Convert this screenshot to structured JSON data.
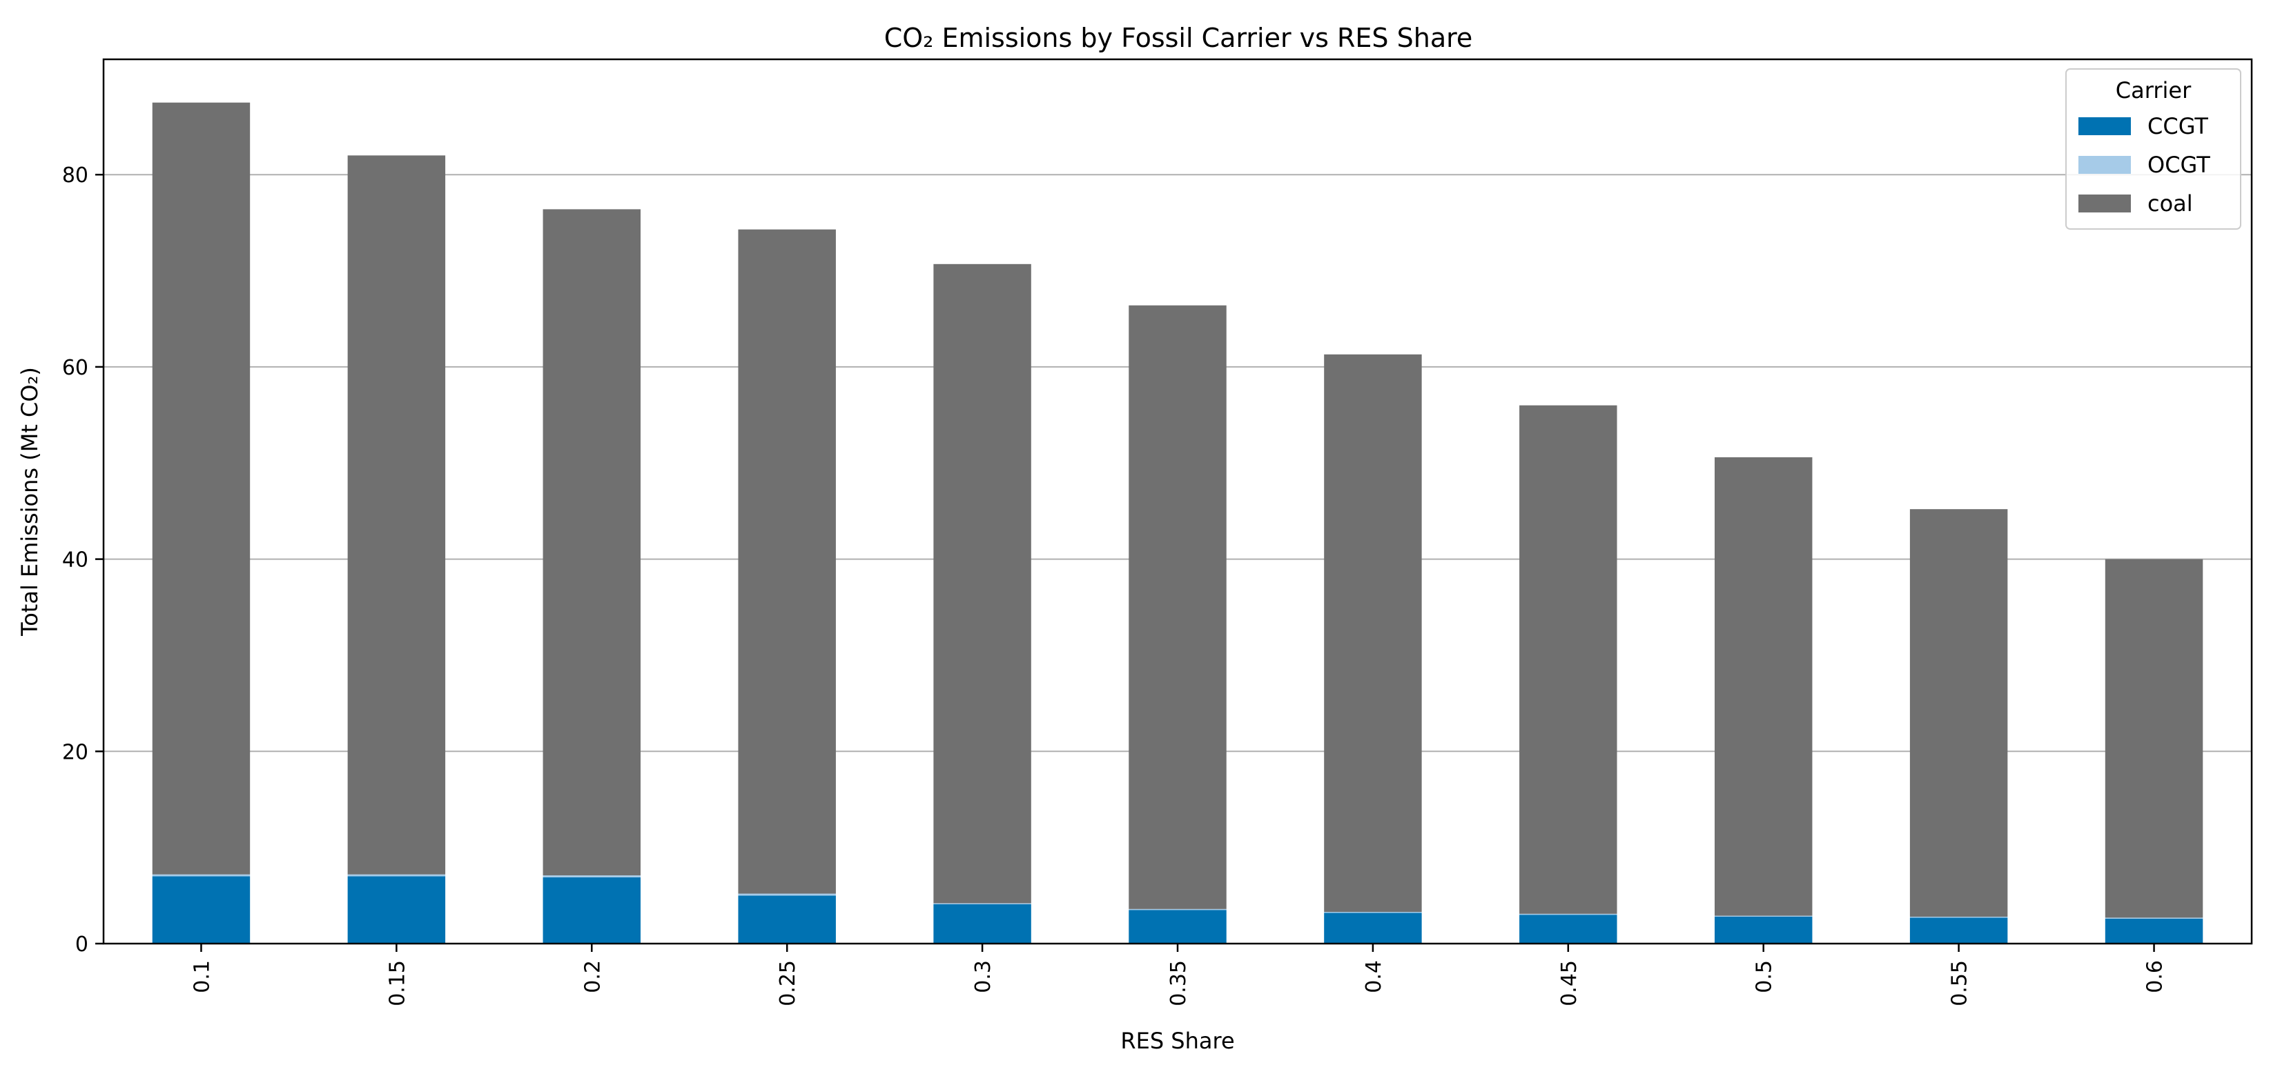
{
  "chart_data": {
    "type": "bar",
    "stacked": true,
    "title": "CO₂ Emissions by Fossil Carrier vs RES Share",
    "xlabel": "RES Share",
    "ylabel": "Total Emissions (Mt CO₂)",
    "ylim": [
      0,
      92
    ],
    "yticks": [
      0,
      20,
      40,
      60,
      80
    ],
    "grid": "y",
    "legend": {
      "title": "Carrier",
      "placement": "top-right"
    },
    "categories": [
      "0.1",
      "0.15",
      "0.2",
      "0.25",
      "0.3",
      "0.35",
      "0.4",
      "0.45",
      "0.5",
      "0.55",
      "0.6"
    ],
    "series": [
      {
        "name": "CCGT",
        "color": "#0072b2",
        "values": [
          7.0,
          7.0,
          6.9,
          5.0,
          4.1,
          3.5,
          3.2,
          3.0,
          2.8,
          2.7,
          2.6
        ]
      },
      {
        "name": "OCGT",
        "color": "#a6cbe8",
        "values": [
          0.2,
          0.2,
          0.2,
          0.2,
          0.1,
          0.1,
          0.1,
          0.1,
          0.1,
          0.1,
          0.1
        ]
      },
      {
        "name": "coal",
        "color": "#707070",
        "values": [
          80.3,
          74.8,
          69.3,
          69.1,
          66.5,
          62.8,
          58.0,
          52.9,
          47.7,
          42.4,
          37.3
        ]
      }
    ]
  }
}
